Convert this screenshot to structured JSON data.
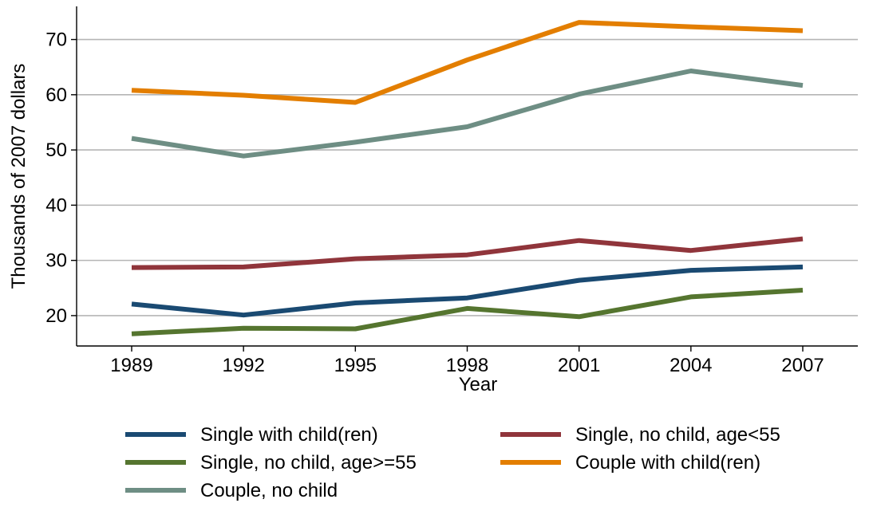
{
  "chart_data": {
    "type": "line",
    "title": "",
    "xlabel": "Year",
    "ylabel": "Thousands of 2007 dollars",
    "x": [
      1989,
      1992,
      1995,
      1998,
      2001,
      2004,
      2007
    ],
    "x_tick_labels": [
      "1989",
      "1992",
      "1995",
      "1998",
      "2001",
      "2004",
      "2007"
    ],
    "y_ticks": [
      20,
      30,
      40,
      50,
      60,
      70
    ],
    "y_tick_labels": [
      "20",
      "30",
      "40",
      "50",
      "60",
      "70"
    ],
    "ylim": [
      14.5,
      76
    ],
    "grid": true,
    "legend_position": "bottom",
    "series": [
      {
        "name": "Single with child(ren)",
        "color": "#1a4a72",
        "values": [
          22.1,
          20.1,
          22.3,
          23.2,
          26.4,
          28.2,
          28.8
        ]
      },
      {
        "name": "Single, no child, age<55",
        "color": "#90353b",
        "values": [
          28.7,
          28.8,
          30.3,
          31.0,
          33.6,
          31.8,
          33.9
        ]
      },
      {
        "name": "Single, no child, age>=55",
        "color": "#55752f",
        "values": [
          16.7,
          17.7,
          17.6,
          21.3,
          19.8,
          23.4,
          24.6
        ]
      },
      {
        "name": "Couple with child(ren)",
        "color": "#e37e00",
        "values": [
          60.8,
          59.9,
          58.6,
          66.3,
          73.1,
          72.3,
          71.6
        ]
      },
      {
        "name": "Couple, no child",
        "color": "#6e8e84",
        "values": [
          52.1,
          48.9,
          51.4,
          54.2,
          60.1,
          64.3,
          61.7
        ]
      }
    ]
  }
}
